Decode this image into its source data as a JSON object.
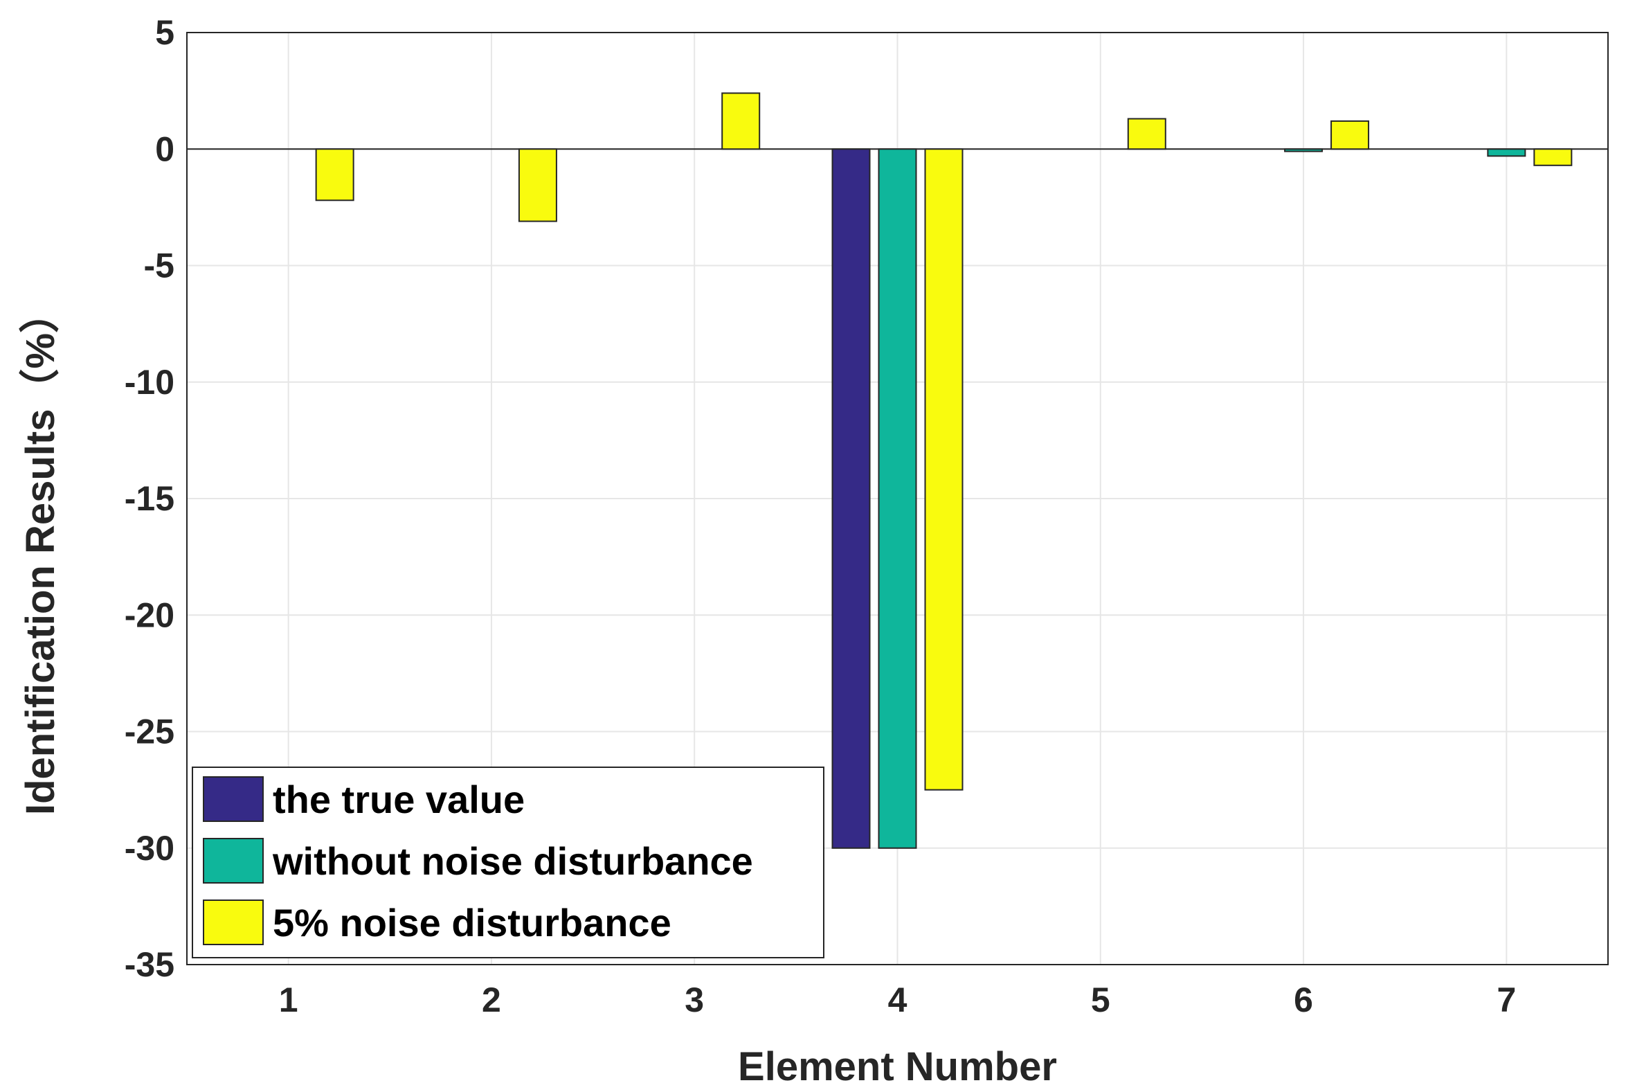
{
  "chart_data": {
    "type": "bar",
    "title": "",
    "xlabel": "Element Number",
    "ylabel": "Identification Results（%）",
    "categories": [
      "1",
      "2",
      "3",
      "4",
      "5",
      "6",
      "7"
    ],
    "yticks": [
      "5",
      "0",
      "-5",
      "-10",
      "-15",
      "-20",
      "-25",
      "-30",
      "-35"
    ],
    "ytick_values": [
      5,
      0,
      -5,
      -10,
      -15,
      -20,
      -25,
      -30,
      -35
    ],
    "ylim": [
      -35,
      5
    ],
    "grid": true,
    "legend_position": "bottom-left",
    "series": [
      {
        "name": "the true value",
        "color": "#352a87",
        "values": [
          0,
          0,
          0,
          -30,
          0,
          0,
          0
        ]
      },
      {
        "name": "without noise disturbance",
        "color": "#0fb69b",
        "values": [
          0,
          0,
          0,
          -30,
          0,
          -0.1,
          -0.3
        ]
      },
      {
        "name": "5% noise disturbance",
        "color": "#f9fb0e",
        "values": [
          -2.2,
          -3.1,
          2.4,
          -27.5,
          1.3,
          1.2,
          -0.7
        ]
      }
    ]
  }
}
